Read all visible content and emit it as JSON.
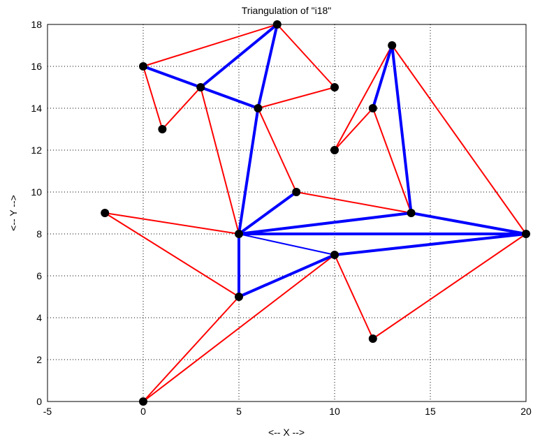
{
  "chart_data": {
    "type": "scatter",
    "title": "Triangulation of \"i18\"",
    "xlabel": "<-- X -->",
    "ylabel": "<-- Y -->",
    "xlim": [
      -5,
      20
    ],
    "ylim": [
      0,
      18
    ],
    "xticks": [
      -5,
      0,
      5,
      10,
      15,
      20
    ],
    "yticks": [
      0,
      2,
      4,
      6,
      8,
      10,
      12,
      14,
      16,
      18
    ],
    "grid": true,
    "colors": {
      "red": "#ff0000",
      "blue": "#0000ff",
      "points": "#000000"
    },
    "points": [
      [
        0,
        0
      ],
      [
        0,
        16
      ],
      [
        1,
        13
      ],
      [
        -2,
        9
      ],
      [
        3,
        15
      ],
      [
        5,
        8
      ],
      [
        5,
        5
      ],
      [
        6,
        14
      ],
      [
        7,
        18
      ],
      [
        8,
        10
      ],
      [
        10,
        15
      ],
      [
        10,
        12
      ],
      [
        10,
        7
      ],
      [
        12,
        14
      ],
      [
        12,
        3
      ],
      [
        13,
        17
      ],
      [
        14,
        9
      ],
      [
        20,
        8
      ]
    ],
    "boundary_edges_red": [
      [
        [
          0,
          16
        ],
        [
          7,
          18
        ]
      ],
      [
        [
          7,
          18
        ],
        [
          10,
          15
        ]
      ],
      [
        [
          10,
          15
        ],
        [
          6,
          14
        ]
      ],
      [
        [
          0,
          16
        ],
        [
          1,
          13
        ]
      ],
      [
        [
          1,
          13
        ],
        [
          3,
          15
        ]
      ],
      [
        [
          3,
          15
        ],
        [
          5,
          8
        ]
      ],
      [
        [
          6,
          14
        ],
        [
          8,
          10
        ]
      ],
      [
        [
          8,
          10
        ],
        [
          14,
          9
        ]
      ],
      [
        [
          -2,
          9
        ],
        [
          5,
          8
        ]
      ],
      [
        [
          -2,
          9
        ],
        [
          5,
          5
        ]
      ],
      [
        [
          5,
          5
        ],
        [
          0,
          0
        ]
      ],
      [
        [
          0,
          0
        ],
        [
          10,
          7
        ]
      ],
      [
        [
          10,
          7
        ],
        [
          12,
          3
        ]
      ],
      [
        [
          12,
          3
        ],
        [
          20,
          8
        ]
      ],
      [
        [
          20,
          8
        ],
        [
          13,
          17
        ]
      ],
      [
        [
          13,
          17
        ],
        [
          10,
          12
        ]
      ],
      [
        [
          10,
          12
        ],
        [
          12,
          14
        ]
      ],
      [
        [
          12,
          14
        ],
        [
          14,
          9
        ]
      ]
    ],
    "interior_edges_blue": [
      [
        [
          0,
          16
        ],
        [
          6,
          14
        ]
      ],
      [
        [
          3,
          15
        ],
        [
          7,
          18
        ]
      ],
      [
        [
          7,
          18
        ],
        [
          6,
          14
        ]
      ],
      [
        [
          6,
          14
        ],
        [
          5,
          8
        ]
      ],
      [
        [
          5,
          8
        ],
        [
          8,
          10
        ]
      ],
      [
        [
          5,
          8
        ],
        [
          5,
          5
        ]
      ],
      [
        [
          5,
          5
        ],
        [
          10,
          7
        ]
      ],
      [
        [
          5,
          8
        ],
        [
          14,
          9
        ]
      ],
      [
        [
          5,
          8
        ],
        [
          20,
          8
        ]
      ],
      [
        [
          14,
          9
        ],
        [
          20,
          8
        ]
      ],
      [
        [
          10,
          7
        ],
        [
          20,
          8
        ]
      ],
      [
        [
          13,
          17
        ],
        [
          12,
          14
        ]
      ],
      [
        [
          13,
          17
        ],
        [
          14,
          9
        ]
      ]
    ],
    "thin_blue_edges": [
      [
        [
          5,
          8
        ],
        [
          10,
          7
        ]
      ]
    ]
  }
}
